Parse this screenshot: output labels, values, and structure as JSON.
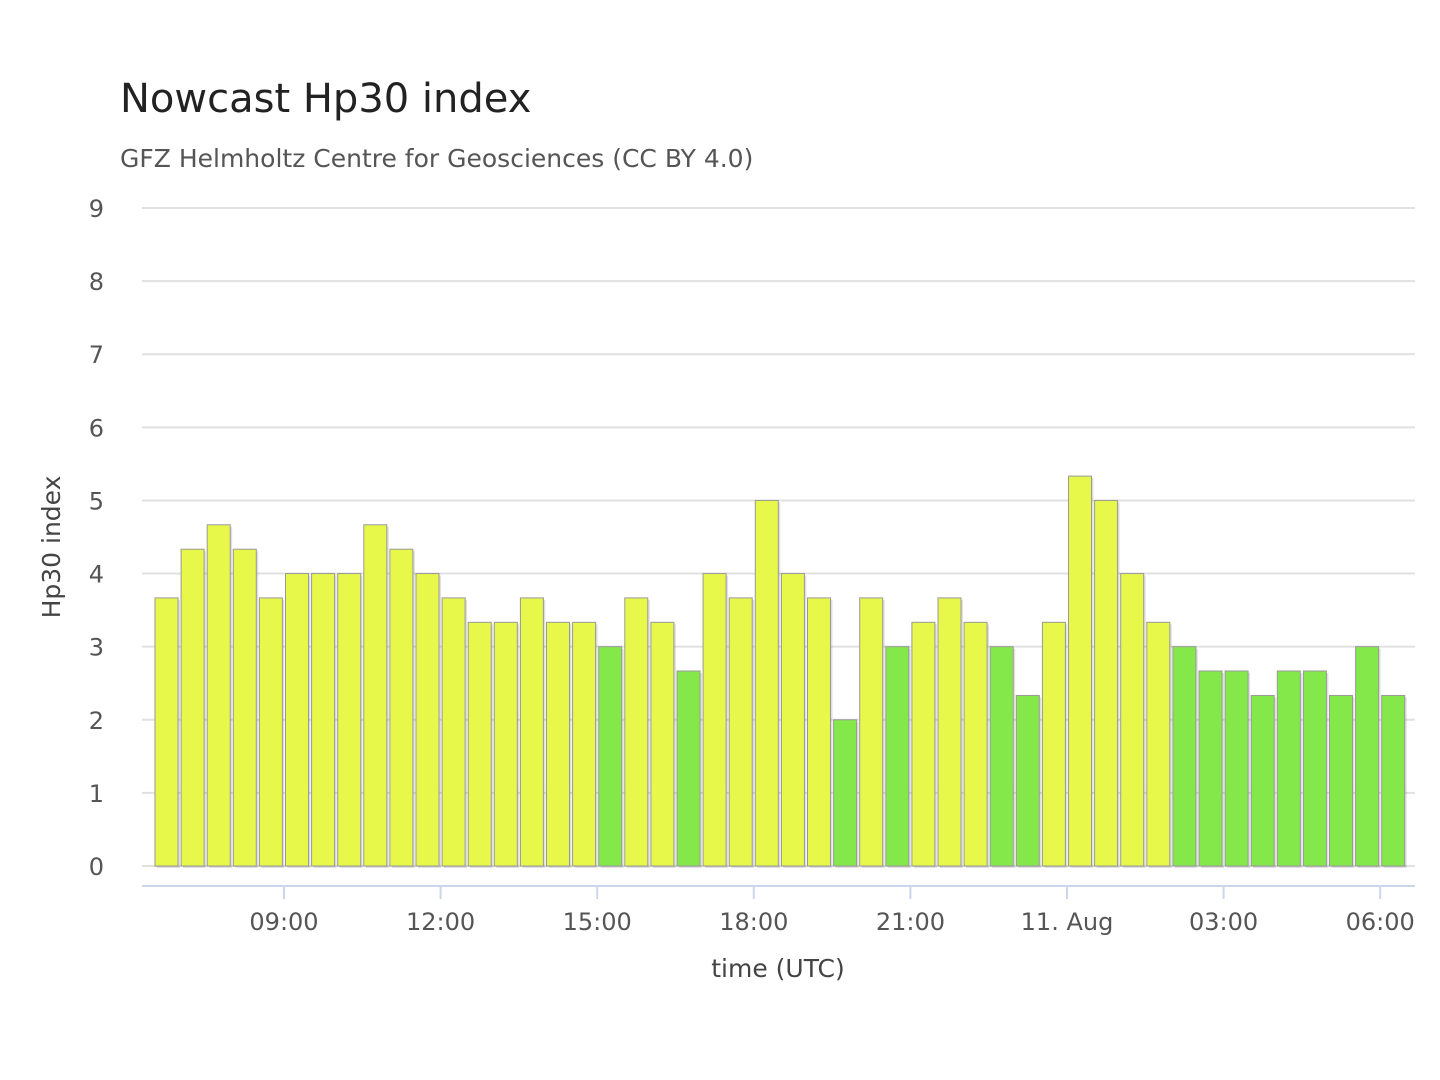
{
  "title": "Nowcast Hp30 index",
  "subtitle": "GFZ Helmholtz Centre for Geosciences (CC BY 4.0)",
  "colors": {
    "low": "#84e84a",
    "mid": "#e7f84a",
    "grid": "#e1e1e1",
    "axis_line": "#ccd6eb",
    "bar_stroke": "#999999"
  },
  "chart_data": {
    "type": "bar",
    "title": "Nowcast Hp30 index",
    "subtitle": "GFZ Helmholtz Centre for Geosciences (CC BY 4.0)",
    "xlabel": "time (UTC)",
    "ylabel": "Hp30 index",
    "ylim": [
      0,
      9
    ],
    "y_ticks": [
      "0",
      "1",
      "2",
      "3",
      "4",
      "5",
      "6",
      "7",
      "8",
      "9"
    ],
    "x_ticks": [
      {
        "label": "09:00",
        "bar_index": 5
      },
      {
        "label": "12:00",
        "bar_index": 11
      },
      {
        "label": "15:00",
        "bar_index": 17
      },
      {
        "label": "18:00",
        "bar_index": 23
      },
      {
        "label": "21:00",
        "bar_index": 29
      },
      {
        "label": "11. Aug",
        "bar_index": 35
      },
      {
        "label": "03:00",
        "bar_index": 41
      },
      {
        "label": "06:00",
        "bar_index": 47
      }
    ],
    "grid": true,
    "legend": "none",
    "color_rule": "green when value <= 3, yellow when value > 3",
    "values": [
      3.667,
      4.333,
      4.667,
      4.333,
      3.667,
      4.0,
      4.0,
      4.0,
      4.667,
      4.333,
      4.0,
      3.667,
      3.333,
      3.333,
      3.667,
      3.333,
      3.333,
      3.0,
      3.667,
      3.333,
      2.667,
      4.0,
      3.667,
      5.0,
      4.0,
      3.667,
      2.0,
      3.667,
      3.0,
      3.333,
      3.667,
      3.333,
      3.0,
      2.333,
      3.333,
      5.333,
      5.0,
      4.0,
      3.333,
      3.0,
      2.667,
      2.667,
      2.333,
      2.667,
      2.667,
      2.333,
      3.0,
      2.333
    ]
  }
}
